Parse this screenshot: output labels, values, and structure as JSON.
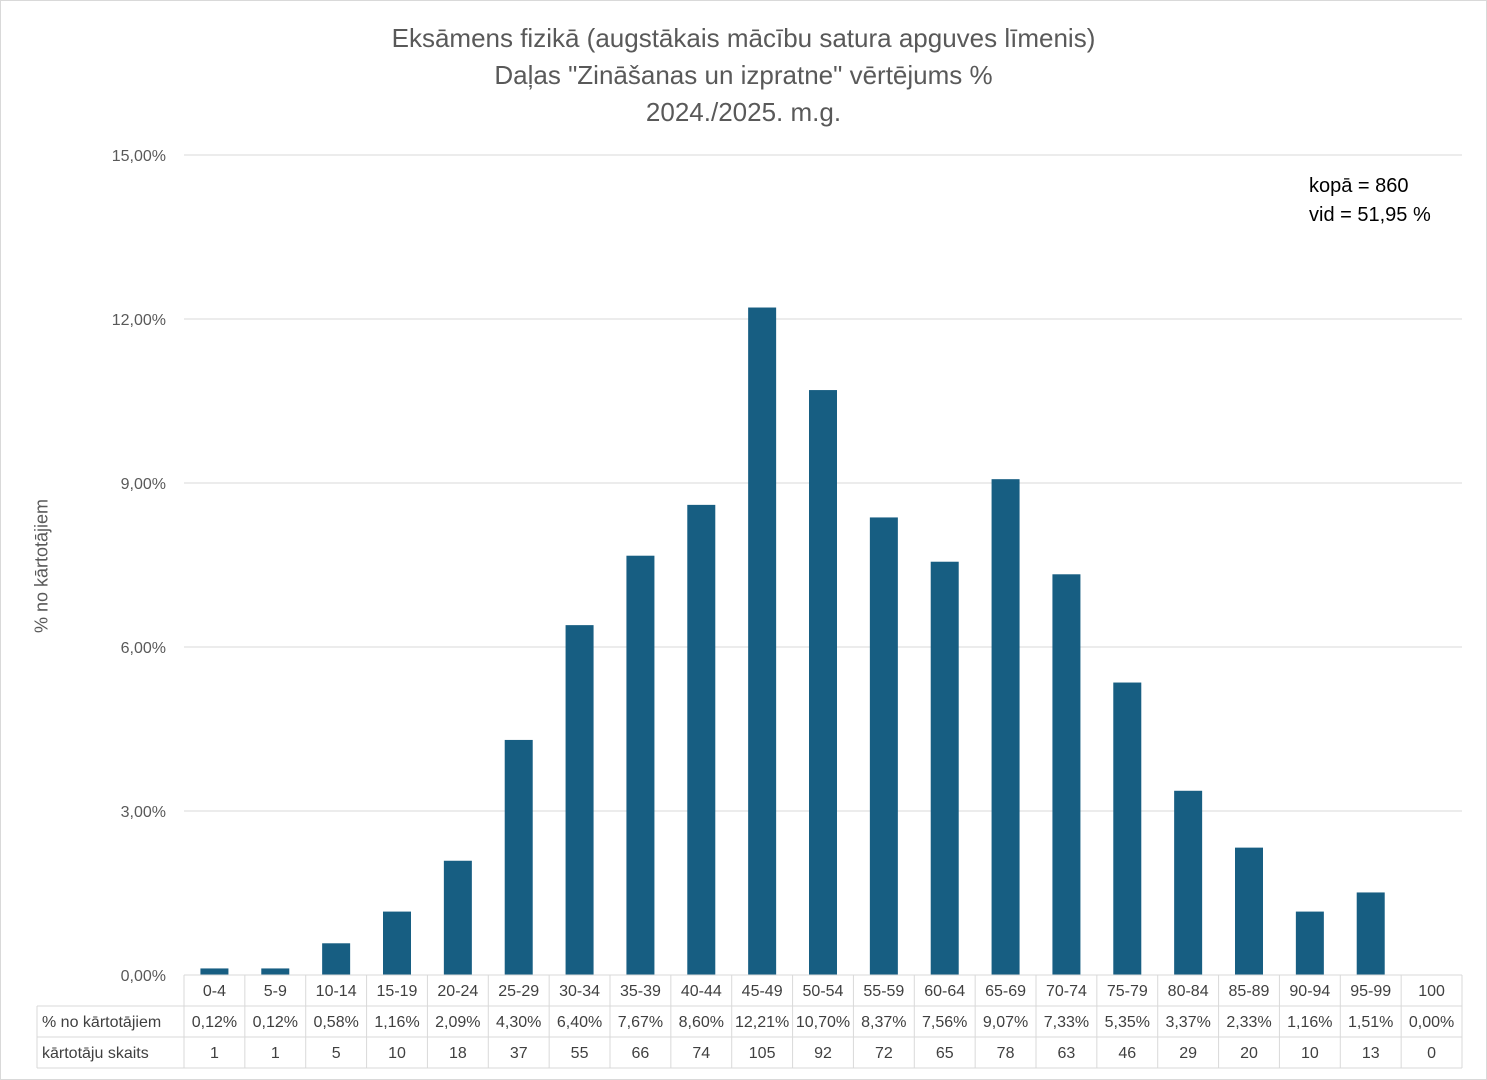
{
  "chart_data": {
    "type": "bar",
    "title_lines": [
      "Eksāmens fizikā (augstākais mācību satura apguves līmenis)",
      "Daļas \"Zināšanas un izpratne\" vērtējums %",
      "2024./2025. m.g."
    ],
    "ylabel": "% no kārtotājiem",
    "ylim": [
      0,
      15
    ],
    "yticks": [
      0,
      3,
      6,
      9,
      12,
      15
    ],
    "ytick_labels": [
      "0,00%",
      "3,00%",
      "6,00%",
      "9,00%",
      "12,00%",
      "15,00%"
    ],
    "grid": true,
    "legend": "none",
    "annotation_lines": [
      "kopā = 860",
      "vid = 51,95 %"
    ],
    "categories": [
      "0-4",
      "5-9",
      "10-14",
      "15-19",
      "20-24",
      "25-29",
      "30-34",
      "35-39",
      "40-44",
      "45-49",
      "50-54",
      "55-59",
      "60-64",
      "65-69",
      "70-74",
      "75-79",
      "80-84",
      "85-89",
      "90-94",
      "95-99",
      "100"
    ],
    "values": [
      0.12,
      0.12,
      0.58,
      1.16,
      2.09,
      4.3,
      6.4,
      7.67,
      8.6,
      12.21,
      10.7,
      8.37,
      7.56,
      9.07,
      7.33,
      5.35,
      3.37,
      2.33,
      1.16,
      1.51,
      0.0
    ],
    "bar_color": "#175e82",
    "table_rows": [
      {
        "label": "% no kārtotājiem",
        "cells": [
          "0,12%",
          "0,12%",
          "0,58%",
          "1,16%",
          "2,09%",
          "4,30%",
          "6,40%",
          "7,67%",
          "8,60%",
          "12,21%",
          "10,70%",
          "8,37%",
          "7,56%",
          "9,07%",
          "7,33%",
          "5,35%",
          "3,37%",
          "2,33%",
          "1,16%",
          "1,51%",
          "0,00%"
        ]
      },
      {
        "label": "kārtotāju skaits",
        "cells": [
          "1",
          "1",
          "5",
          "10",
          "18",
          "37",
          "55",
          "66",
          "74",
          "105",
          "92",
          "72",
          "65",
          "78",
          "63",
          "46",
          "29",
          "20",
          "10",
          "13",
          "0"
        ]
      }
    ]
  }
}
